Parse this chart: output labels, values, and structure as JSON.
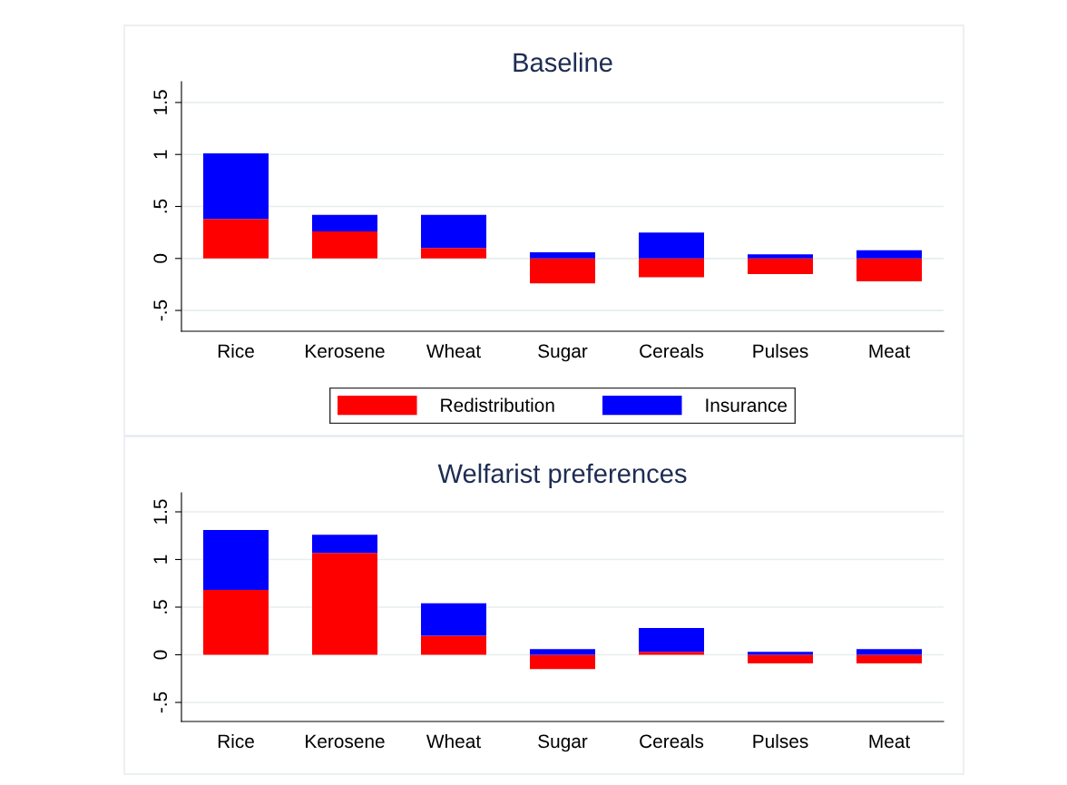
{
  "chart_data": [
    {
      "type": "bar",
      "title": "Baseline",
      "stacked": true,
      "categories": [
        "Rice",
        "Kerosene",
        "Wheat",
        "Sugar",
        "Cereals",
        "Pulses",
        "Meat"
      ],
      "series": [
        {
          "name": "Redistribution",
          "color": "#ff0000",
          "values": [
            0.38,
            0.26,
            0.1,
            -0.24,
            -0.18,
            -0.15,
            -0.22
          ]
        },
        {
          "name": "Insurance",
          "color": "#0000ff",
          "values": [
            0.63,
            0.16,
            0.32,
            0.06,
            0.25,
            0.04,
            0.08
          ]
        }
      ],
      "ylim": [
        -0.7,
        1.7
      ],
      "yticks": [
        {
          "value": -0.5,
          "label": "-.5"
        },
        0,
        {
          "value": 0.5,
          "label": ".5"
        },
        1,
        {
          "value": 1.5,
          "label": "1.5"
        }
      ],
      "grid": "y",
      "legend": "bottom"
    },
    {
      "type": "bar",
      "title": "Welfarist preferences",
      "stacked": true,
      "categories": [
        "Rice",
        "Kerosene",
        "Wheat",
        "Sugar",
        "Cereals",
        "Pulses",
        "Meat"
      ],
      "series": [
        {
          "color": "#ff0000",
          "values": [
            0.68,
            1.07,
            0.2,
            -0.15,
            0.03,
            -0.09,
            -0.09
          ]
        },
        {
          "color": "#0000ff",
          "values": [
            0.63,
            0.19,
            0.34,
            0.06,
            0.25,
            0.03,
            0.06
          ]
        }
      ],
      "ylim": [
        -0.7,
        1.7
      ],
      "yticks": [
        {
          "value": -0.5,
          "label": "-.5"
        },
        0,
        {
          "value": 0.5,
          "label": ".5"
        },
        1,
        {
          "value": 1.5,
          "label": "1.5"
        }
      ],
      "grid": "y",
      "legend": false
    }
  ]
}
